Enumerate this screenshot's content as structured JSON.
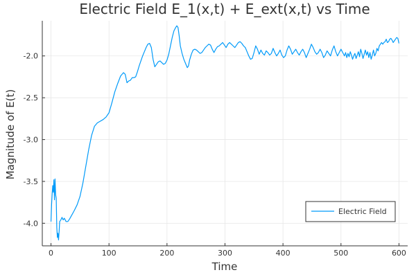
{
  "chart_data": {
    "type": "line",
    "title": "Electric Field E_1(x,t) + E_ext(x,t) vs Time",
    "xlabel": "Time",
    "ylabel": "Magnitude of E(t)",
    "xlim": [
      -15,
      615
    ],
    "ylim": [
      -4.27,
      -1.58
    ],
    "xticks": [
      {
        "value": 0,
        "label": "0"
      },
      {
        "value": 100,
        "label": "100"
      },
      {
        "value": 200,
        "label": "200"
      },
      {
        "value": 300,
        "label": "300"
      },
      {
        "value": 400,
        "label": "400"
      },
      {
        "value": 500,
        "label": "500"
      },
      {
        "value": 600,
        "label": "600"
      }
    ],
    "yticks": [
      {
        "value": -4.0,
        "label": "-4.0"
      },
      {
        "value": -3.5,
        "label": "-3.5"
      },
      {
        "value": -3.0,
        "label": "-3.0"
      },
      {
        "value": -2.5,
        "label": "-2.5"
      },
      {
        "value": -2.0,
        "label": "-2.0"
      }
    ],
    "grid": true,
    "legend_position": "bottom-right",
    "series": [
      {
        "name": "Electric Field",
        "color": "#009af9",
        "points": [
          [
            0,
            -3.98
          ],
          [
            1,
            -3.78
          ],
          [
            2,
            -3.65
          ],
          [
            3,
            -3.55
          ],
          [
            4,
            -3.63
          ],
          [
            5,
            -3.48
          ],
          [
            6,
            -3.72
          ],
          [
            7,
            -3.47
          ],
          [
            8,
            -3.66
          ],
          [
            9,
            -3.7
          ],
          [
            10,
            -4.05
          ],
          [
            11,
            -4.17
          ],
          [
            12,
            -4.12
          ],
          [
            13,
            -4.2
          ],
          [
            14,
            -4.1
          ],
          [
            15,
            -3.98
          ],
          [
            17,
            -3.96
          ],
          [
            19,
            -3.93
          ],
          [
            21,
            -3.96
          ],
          [
            23,
            -3.94
          ],
          [
            26,
            -3.98
          ],
          [
            29,
            -3.98
          ],
          [
            32,
            -3.95
          ],
          [
            36,
            -3.9
          ],
          [
            40,
            -3.85
          ],
          [
            45,
            -3.78
          ],
          [
            50,
            -3.68
          ],
          [
            55,
            -3.52
          ],
          [
            60,
            -3.32
          ],
          [
            65,
            -3.12
          ],
          [
            70,
            -2.95
          ],
          [
            75,
            -2.84
          ],
          [
            80,
            -2.8
          ],
          [
            85,
            -2.78
          ],
          [
            90,
            -2.76
          ],
          [
            95,
            -2.73
          ],
          [
            100,
            -2.68
          ],
          [
            105,
            -2.56
          ],
          [
            110,
            -2.43
          ],
          [
            115,
            -2.33
          ],
          [
            120,
            -2.24
          ],
          [
            125,
            -2.2
          ],
          [
            128,
            -2.22
          ],
          [
            131,
            -2.32
          ],
          [
            134,
            -2.3
          ],
          [
            137,
            -2.29
          ],
          [
            140,
            -2.26
          ],
          [
            143,
            -2.26
          ],
          [
            146,
            -2.25
          ],
          [
            149,
            -2.19
          ],
          [
            152,
            -2.12
          ],
          [
            155,
            -2.06
          ],
          [
            158,
            -2.0
          ],
          [
            161,
            -1.95
          ],
          [
            164,
            -1.9
          ],
          [
            167,
            -1.86
          ],
          [
            170,
            -1.85
          ],
          [
            173,
            -1.9
          ],
          [
            176,
            -2.04
          ],
          [
            179,
            -2.13
          ],
          [
            182,
            -2.1
          ],
          [
            185,
            -2.07
          ],
          [
            188,
            -2.06
          ],
          [
            191,
            -2.08
          ],
          [
            194,
            -2.1
          ],
          [
            197,
            -2.09
          ],
          [
            200,
            -2.05
          ],
          [
            203,
            -1.98
          ],
          [
            206,
            -1.88
          ],
          [
            209,
            -1.78
          ],
          [
            212,
            -1.7
          ],
          [
            215,
            -1.66
          ],
          [
            217,
            -1.64
          ],
          [
            219,
            -1.66
          ],
          [
            221,
            -1.76
          ],
          [
            223,
            -1.88
          ],
          [
            226,
            -1.97
          ],
          [
            229,
            -2.04
          ],
          [
            232,
            -2.09
          ],
          [
            235,
            -2.14
          ],
          [
            237,
            -2.12
          ],
          [
            239,
            -2.05
          ],
          [
            242,
            -1.98
          ],
          [
            245,
            -1.93
          ],
          [
            248,
            -1.92
          ],
          [
            251,
            -1.93
          ],
          [
            254,
            -1.95
          ],
          [
            257,
            -1.97
          ],
          [
            260,
            -1.96
          ],
          [
            263,
            -1.93
          ],
          [
            266,
            -1.9
          ],
          [
            269,
            -1.88
          ],
          [
            272,
            -1.86
          ],
          [
            275,
            -1.87
          ],
          [
            278,
            -1.92
          ],
          [
            281,
            -1.96
          ],
          [
            284,
            -1.92
          ],
          [
            287,
            -1.89
          ],
          [
            290,
            -1.88
          ],
          [
            293,
            -1.86
          ],
          [
            296,
            -1.84
          ],
          [
            299,
            -1.87
          ],
          [
            302,
            -1.9
          ],
          [
            305,
            -1.86
          ],
          [
            308,
            -1.84
          ],
          [
            311,
            -1.86
          ],
          [
            314,
            -1.88
          ],
          [
            317,
            -1.9
          ],
          [
            320,
            -1.87
          ],
          [
            323,
            -1.84
          ],
          [
            326,
            -1.83
          ],
          [
            329,
            -1.85
          ],
          [
            332,
            -1.88
          ],
          [
            335,
            -1.9
          ],
          [
            338,
            -1.95
          ],
          [
            341,
            -2.0
          ],
          [
            344,
            -2.04
          ],
          [
            347,
            -2.03
          ],
          [
            350,
            -1.96
          ],
          [
            353,
            -1.88
          ],
          [
            356,
            -1.92
          ],
          [
            359,
            -1.98
          ],
          [
            362,
            -1.93
          ],
          [
            365,
            -1.97
          ],
          [
            368,
            -1.99
          ],
          [
            371,
            -1.94
          ],
          [
            374,
            -1.96
          ],
          [
            377,
            -1.99
          ],
          [
            380,
            -1.97
          ],
          [
            383,
            -1.91
          ],
          [
            386,
            -1.96
          ],
          [
            389,
            -2.0
          ],
          [
            392,
            -1.97
          ],
          [
            395,
            -1.93
          ],
          [
            398,
            -1.99
          ],
          [
            401,
            -2.02
          ],
          [
            404,
            -2.0
          ],
          [
            407,
            -1.93
          ],
          [
            410,
            -1.88
          ],
          [
            413,
            -1.92
          ],
          [
            416,
            -1.98
          ],
          [
            419,
            -1.95
          ],
          [
            422,
            -1.92
          ],
          [
            425,
            -1.96
          ],
          [
            428,
            -1.99
          ],
          [
            431,
            -1.95
          ],
          [
            434,
            -1.92
          ],
          [
            437,
            -1.96
          ],
          [
            440,
            -2.02
          ],
          [
            443,
            -1.97
          ],
          [
            446,
            -1.92
          ],
          [
            449,
            -1.86
          ],
          [
            452,
            -1.9
          ],
          [
            455,
            -1.95
          ],
          [
            458,
            -1.98
          ],
          [
            461,
            -1.96
          ],
          [
            464,
            -1.92
          ],
          [
            467,
            -1.96
          ],
          [
            470,
            -2.02
          ],
          [
            473,
            -1.99
          ],
          [
            476,
            -1.94
          ],
          [
            479,
            -1.97
          ],
          [
            482,
            -2.0
          ],
          [
            485,
            -1.93
          ],
          [
            488,
            -1.88
          ],
          [
            491,
            -1.95
          ],
          [
            494,
            -2.0
          ],
          [
            497,
            -1.96
          ],
          [
            500,
            -1.92
          ],
          [
            503,
            -1.96
          ],
          [
            506,
            -2.0
          ],
          [
            508,
            -1.96
          ],
          [
            510,
            -2.02
          ],
          [
            512,
            -1.97
          ],
          [
            514,
            -2.01
          ],
          [
            516,
            -1.95
          ],
          [
            518,
            -1.99
          ],
          [
            520,
            -2.04
          ],
          [
            522,
            -2.0
          ],
          [
            524,
            -1.97
          ],
          [
            526,
            -2.03
          ],
          [
            528,
            -1.99
          ],
          [
            530,
            -1.95
          ],
          [
            532,
            -2.01
          ],
          [
            534,
            -1.92
          ],
          [
            536,
            -1.97
          ],
          [
            538,
            -2.03
          ],
          [
            540,
            -1.98
          ],
          [
            542,
            -1.93
          ],
          [
            544,
            -1.99
          ],
          [
            546,
            -1.95
          ],
          [
            548,
            -2.02
          ],
          [
            550,
            -1.96
          ],
          [
            552,
            -2.04
          ],
          [
            554,
            -1.99
          ],
          [
            556,
            -1.93
          ],
          [
            558,
            -2.0
          ],
          [
            560,
            -1.97
          ],
          [
            562,
            -1.91
          ],
          [
            564,
            -1.94
          ],
          [
            566,
            -1.88
          ],
          [
            568,
            -1.86
          ],
          [
            570,
            -1.84
          ],
          [
            572,
            -1.86
          ],
          [
            574,
            -1.84
          ],
          [
            576,
            -1.83
          ],
          [
            578,
            -1.8
          ],
          [
            580,
            -1.84
          ],
          [
            582,
            -1.83
          ],
          [
            584,
            -1.8
          ],
          [
            586,
            -1.79
          ],
          [
            588,
            -1.81
          ],
          [
            590,
            -1.84
          ],
          [
            592,
            -1.82
          ],
          [
            594,
            -1.8
          ],
          [
            596,
            -1.78
          ],
          [
            598,
            -1.79
          ],
          [
            600,
            -1.85
          ]
        ]
      }
    ]
  }
}
